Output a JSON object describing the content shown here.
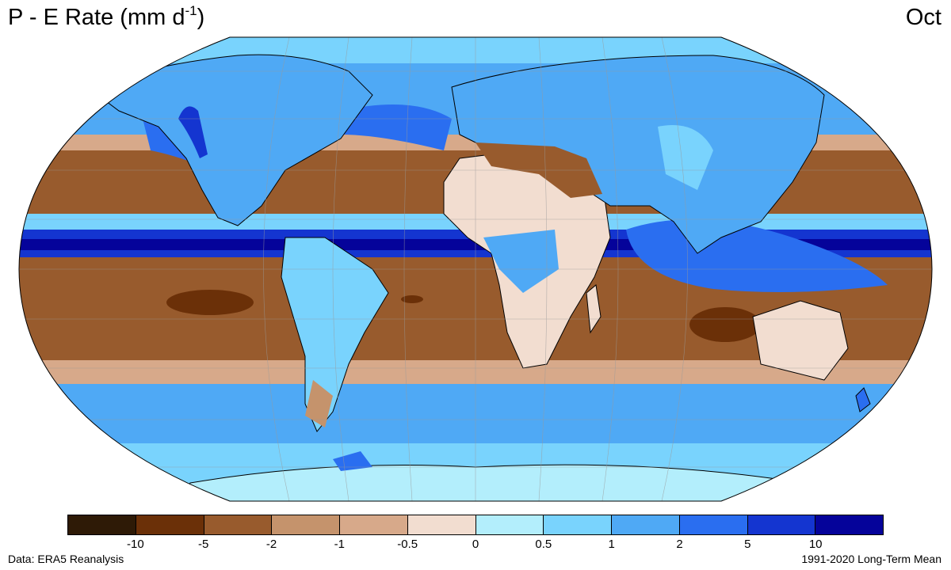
{
  "header": {
    "title_main": "P - E Rate (mm d",
    "title_sup": "-1",
    "title_close": ")",
    "month": "Oct"
  },
  "map": {
    "projection": "Robinson",
    "variable": "Precipitation minus Evaporation",
    "layers": [
      "ocean-field",
      "land-field",
      "coastlines",
      "country-borders",
      "graticule"
    ]
  },
  "legend": {
    "colors": [
      "#2e1a06",
      "#6b3008",
      "#985b2d",
      "#c5936c",
      "#d7a98a",
      "#f2ddd0",
      "#b3eefc",
      "#79d3fd",
      "#4fa9f5",
      "#2a6ef0",
      "#1435d0",
      "#05039a"
    ],
    "tick_labels": [
      "-10",
      "-5",
      "-2",
      "-1",
      "-0.5",
      "0",
      "0.5",
      "1",
      "2",
      "5",
      "10"
    ]
  },
  "footer": {
    "source": "Data: ERA5 Reanalysis",
    "period": "1991-2020 Long-Term Mean"
  }
}
